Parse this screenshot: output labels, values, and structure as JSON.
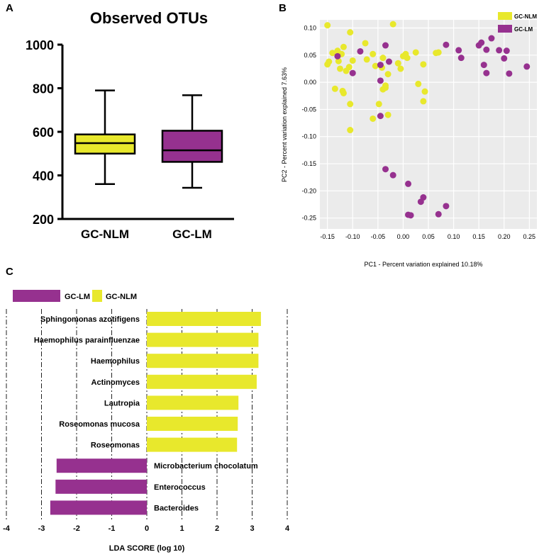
{
  "panels": {
    "a": "A",
    "b": "B",
    "c": "C"
  },
  "colors": {
    "nlm": "#e8e82c",
    "lm": "#96318f",
    "grid_bg": "#ebebeb"
  },
  "chart_data": [
    {
      "type": "boxplot",
      "title": "Observed OTUs",
      "ylim": [
        200,
        1000
      ],
      "yticks": [
        200,
        400,
        600,
        800,
        1000
      ],
      "categories": [
        "GC-NLM",
        "GC-LM"
      ],
      "boxes": [
        {
          "name": "GC-NLM",
          "color": "#e8e82c",
          "min": 360,
          "q1": 500,
          "median": 548,
          "q3": 588,
          "max": 790
        },
        {
          "name": "GC-LM",
          "color": "#96318f",
          "min": 343,
          "q1": 462,
          "median": 515,
          "q3": 605,
          "max": 768
        }
      ]
    },
    {
      "type": "scatter",
      "xlabel": "PC1 - Percent variation explained 10.18%",
      "ylabel": "PC2 - Percent variation explained 7.63%",
      "xlim": [
        -0.165,
        0.265
      ],
      "ylim": [
        -0.27,
        0.115
      ],
      "xticks": [
        "-0.15",
        "-0.10",
        "-0.05",
        "0.00",
        "0.05",
        "0.10",
        "0.15",
        "0.20",
        "0.25"
      ],
      "yticks": [
        "0.10",
        "0.05",
        "0.00",
        "-0.05",
        "-0.10",
        "-0.15",
        "-0.20",
        "-0.25"
      ],
      "legend": [
        "GC-NLM",
        "GC-LM"
      ],
      "series": [
        {
          "name": "GC-NLM",
          "color": "#e8e82c",
          "points": [
            [
              -0.15,
              0.105
            ],
            [
              -0.105,
              0.092
            ],
            [
              -0.02,
              0.107
            ],
            [
              -0.147,
              0.038
            ],
            [
              -0.14,
              0.054
            ],
            [
              -0.15,
              0.033
            ],
            [
              -0.13,
              0.058
            ],
            [
              -0.118,
              0.065
            ],
            [
              -0.122,
              0.052
            ],
            [
              -0.128,
              0.039
            ],
            [
              -0.125,
              0.025
            ],
            [
              -0.1,
              0.04
            ],
            [
              -0.107,
              0.028
            ],
            [
              -0.113,
              0.021
            ],
            [
              -0.135,
              -0.012
            ],
            [
              -0.12,
              -0.016
            ],
            [
              -0.118,
              -0.02
            ],
            [
              -0.105,
              -0.04
            ],
            [
              -0.075,
              0.072
            ],
            [
              -0.06,
              0.052
            ],
            [
              -0.072,
              0.042
            ],
            [
              -0.055,
              0.03
            ],
            [
              -0.04,
              0.045
            ],
            [
              -0.042,
              0.027
            ],
            [
              -0.03,
              0.015
            ],
            [
              -0.035,
              -0.006
            ],
            [
              -0.04,
              -0.013
            ],
            [
              -0.035,
              -0.01
            ],
            [
              -0.048,
              -0.04
            ],
            [
              -0.06,
              -0.067
            ],
            [
              -0.03,
              -0.06
            ],
            [
              -0.105,
              -0.088
            ],
            [
              -0.01,
              0.035
            ],
            [
              -0.005,
              0.025
            ],
            [
              0.0,
              0.048
            ],
            [
              0.005,
              0.052
            ],
            [
              0.008,
              0.045
            ],
            [
              0.025,
              0.055
            ],
            [
              0.03,
              -0.003
            ],
            [
              0.04,
              0.033
            ],
            [
              0.043,
              -0.017
            ],
            [
              0.04,
              -0.035
            ],
            [
              0.065,
              0.054
            ],
            [
              0.07,
              0.055
            ]
          ]
        },
        {
          "name": "GC-LM",
          "color": "#96318f",
          "points": [
            [
              -0.13,
              0.048
            ],
            [
              -0.085,
              0.057
            ],
            [
              -0.1,
              0.017
            ],
            [
              -0.045,
              0.032
            ],
            [
              -0.035,
              0.068
            ],
            [
              -0.028,
              0.038
            ],
            [
              -0.045,
              0.003
            ],
            [
              -0.045,
              -0.062
            ],
            [
              0.085,
              0.069
            ],
            [
              0.11,
              0.059
            ],
            [
              0.115,
              0.045
            ],
            [
              0.15,
              0.068
            ],
            [
              0.155,
              0.073
            ],
            [
              0.165,
              0.06
            ],
            [
              0.16,
              0.032
            ],
            [
              0.165,
              0.017
            ],
            [
              0.175,
              0.081
            ],
            [
              0.19,
              0.059
            ],
            [
              0.2,
              0.044
            ],
            [
              0.205,
              0.058
            ],
            [
              0.21,
              0.016
            ],
            [
              0.245,
              0.029
            ],
            [
              -0.035,
              -0.16
            ],
            [
              -0.02,
              -0.171
            ],
            [
              0.01,
              -0.187
            ],
            [
              0.035,
              -0.22
            ],
            [
              0.04,
              -0.212
            ],
            [
              0.085,
              -0.228
            ],
            [
              0.07,
              -0.243
            ],
            [
              0.01,
              -0.244
            ],
            [
              0.015,
              -0.245
            ]
          ]
        }
      ]
    },
    {
      "type": "bar",
      "orientation": "horizontal",
      "xlabel": "LDA SCORE (log 10)",
      "xlim": [
        -4,
        4
      ],
      "xticks": [
        -4,
        -3,
        -2,
        -1,
        0,
        1,
        2,
        3,
        4
      ],
      "legend": [
        "GC-LM",
        "GC-NLM"
      ],
      "categories": [
        "Sphingomonas azotifigens",
        "Haemophilus parainfluenzae",
        "Haemophilus",
        "Actinomyces",
        "Lautropia",
        "Roseomonas mucosa",
        "Roseomonas",
        "Microbacterium chocolatum",
        "Enterococcus",
        "Bacteroides"
      ],
      "values": [
        3.25,
        3.18,
        3.18,
        3.13,
        2.61,
        2.59,
        2.57,
        -2.57,
        -2.6,
        -2.75
      ],
      "groups": [
        "GC-NLM",
        "GC-NLM",
        "GC-NLM",
        "GC-NLM",
        "GC-NLM",
        "GC-NLM",
        "GC-NLM",
        "GC-LM",
        "GC-LM",
        "GC-LM"
      ]
    }
  ]
}
